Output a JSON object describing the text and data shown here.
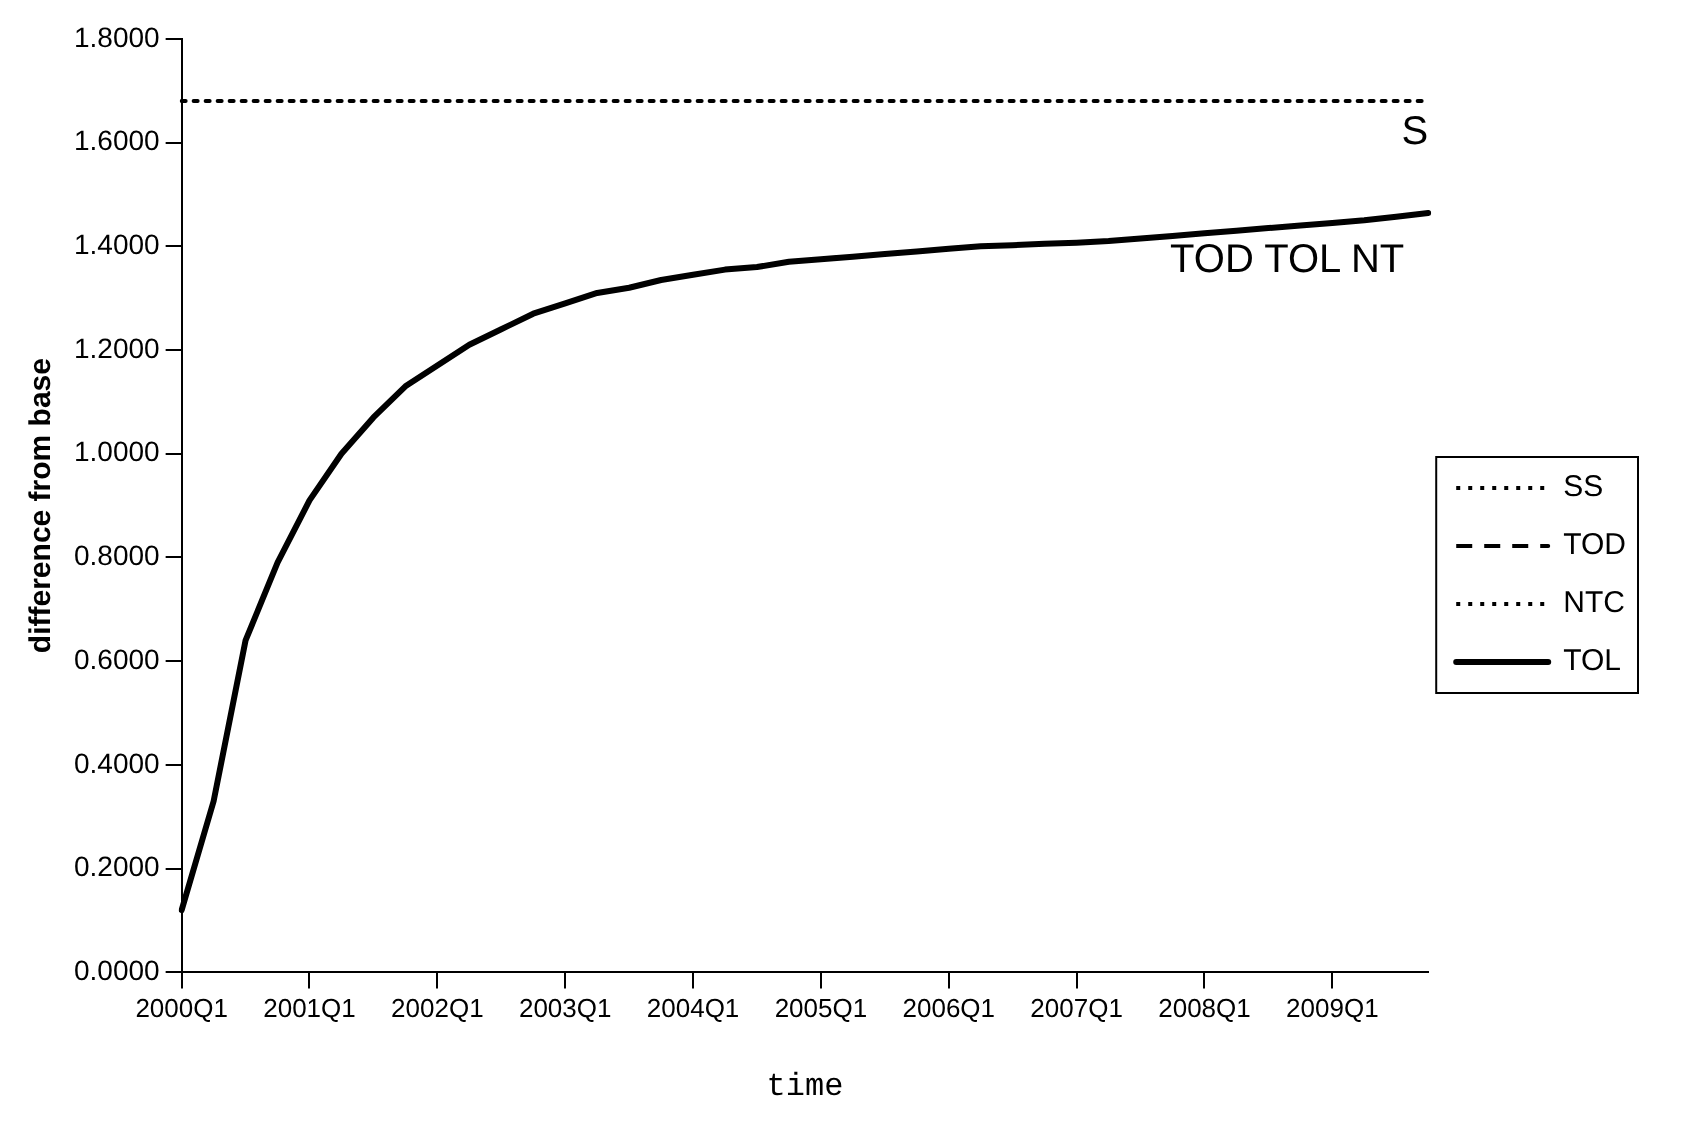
{
  "chart_data": {
    "type": "line",
    "xlabel": "time",
    "ylabel": "difference from base",
    "categories": [
      "2000Q1",
      null,
      null,
      null,
      "2001Q1",
      null,
      null,
      null,
      "2002Q1",
      null,
      null,
      null,
      "2003Q1",
      null,
      null,
      null,
      "2004Q1",
      null,
      null,
      null,
      "2005Q1",
      null,
      null,
      null,
      "2006Q1",
      null,
      null,
      null,
      "2007Q1",
      null,
      null,
      null,
      "2008Q1",
      null,
      null,
      null,
      "2009Q1",
      null,
      null,
      null
    ],
    "series": [
      {
        "name": "SS",
        "color": "#000000",
        "line_style": "dotted",
        "values": [
          1.68,
          1.68,
          1.68,
          1.68,
          1.68,
          1.68,
          1.68,
          1.68,
          1.68,
          1.68,
          1.68,
          1.68,
          1.68,
          1.68,
          1.68,
          1.68,
          1.68,
          1.68,
          1.68,
          1.68,
          1.68,
          1.68,
          1.68,
          1.68,
          1.68,
          1.68,
          1.68,
          1.68,
          1.68,
          1.68,
          1.68,
          1.68,
          1.68,
          1.68,
          1.68,
          1.68,
          1.68,
          1.68,
          1.68,
          1.68
        ]
      },
      {
        "name": "TOD",
        "color": "#000000",
        "line_style": "dashed",
        "values": [
          null,
          null,
          null,
          null,
          null,
          null,
          null,
          null,
          null,
          null,
          null,
          null,
          null,
          null,
          null,
          null,
          null,
          null,
          null,
          null,
          null,
          null,
          null,
          null,
          null,
          null,
          null,
          null,
          null,
          null,
          null,
          null,
          null,
          null,
          null,
          null,
          null,
          null,
          null,
          null
        ]
      },
      {
        "name": "NTC",
        "color": "#000000",
        "line_style": "dotted",
        "values": [
          null,
          null,
          null,
          null,
          null,
          null,
          null,
          null,
          null,
          null,
          null,
          null,
          null,
          null,
          null,
          null,
          null,
          null,
          null,
          null,
          null,
          null,
          null,
          null,
          null,
          null,
          null,
          null,
          null,
          null,
          null,
          null,
          null,
          null,
          null,
          null,
          null,
          null,
          null,
          null
        ]
      },
      {
        "name": "TOL",
        "color": "#000000",
        "line_style": "solid",
        "values": [
          0.12,
          0.33,
          0.64,
          0.79,
          0.91,
          1.0,
          1.07,
          1.13,
          1.17,
          1.21,
          1.24,
          1.27,
          1.29,
          1.31,
          1.32,
          1.335,
          1.345,
          1.355,
          1.36,
          1.37,
          1.375,
          1.38,
          1.385,
          1.39,
          1.395,
          1.4,
          1.402,
          1.405,
          1.407,
          1.41,
          1.415,
          1.42,
          1.425,
          1.43,
          1.435,
          1.44,
          1.445,
          1.45,
          1.457,
          1.464
        ]
      }
    ],
    "ylim": [
      0,
      1.8
    ],
    "yticks": [
      {
        "value": 0,
        "label": "0.0000"
      },
      {
        "value": 0.2,
        "label": "0.2000"
      },
      {
        "value": 0.4,
        "label": "0.4000"
      },
      {
        "value": 0.6,
        "label": "0.6000"
      },
      {
        "value": 0.8,
        "label": "0.8000"
      },
      {
        "value": 1.0,
        "label": "1.0000"
      },
      {
        "value": 1.2,
        "label": "1.2000"
      },
      {
        "value": 1.4,
        "label": "1.4000"
      },
      {
        "value": 1.6,
        "label": "1.6000"
      },
      {
        "value": 1.8,
        "label": "1.8000"
      }
    ],
    "annotations": [
      "S",
      "TOD TOL NT"
    ],
    "grid": false,
    "legend": "right",
    "marker": "none"
  }
}
